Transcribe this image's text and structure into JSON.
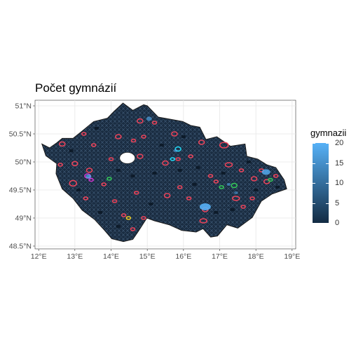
{
  "title": "Počet gymnázií",
  "map": {
    "x_ticks": [
      "12°E",
      "13°E",
      "14°E",
      "15°E",
      "16°E",
      "17°E",
      "18°E",
      "19°E"
    ],
    "y_ticks": [
      "51°N",
      "50.5°N",
      "50°N",
      "49.5°N",
      "49°N",
      "48.5°N"
    ],
    "x_range": [
      11.9,
      19.1
    ],
    "y_range": [
      48.45,
      51.1
    ],
    "fill_low": "#132b43",
    "fill_high": "#56b1f7",
    "highlight_red": "#e8435a",
    "highlight_green": "#34c759",
    "highlight_cyan": "#21d4f0",
    "highlight_magenta": "#cc33cc",
    "highlight_yellow": "#e8c620",
    "outline": "#8aa4bd"
  },
  "legend": {
    "title": "gymnazii",
    "ticks": [
      "20",
      "15",
      "10",
      "5",
      "0"
    ],
    "min": 0,
    "max": 20
  }
}
